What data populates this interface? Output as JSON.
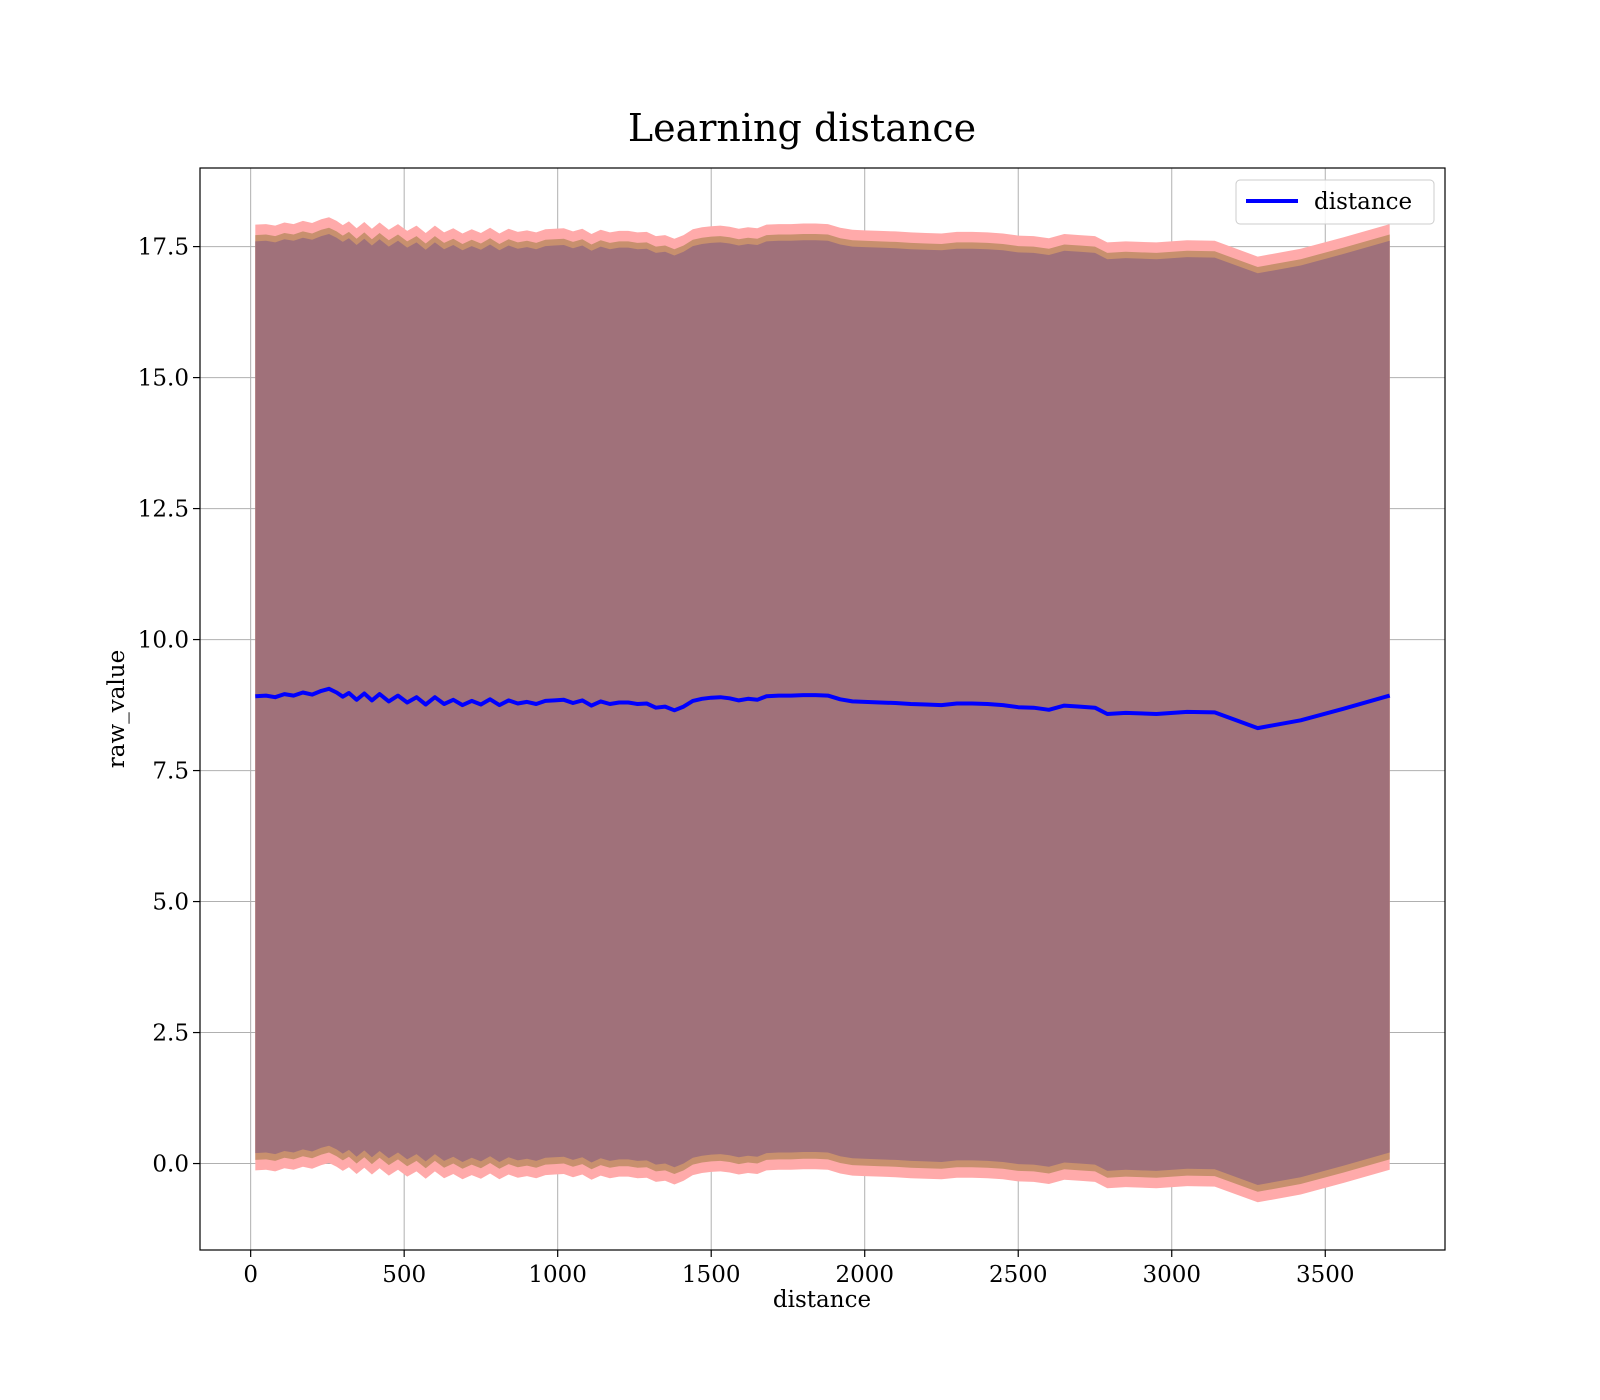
{
  "chart_data": {
    "type": "line",
    "title": "Learning distance",
    "xlabel": "distance",
    "ylabel": "raw_value",
    "xlim": [
      -165,
      3890
    ],
    "ylim": [
      -1.65,
      19.0
    ],
    "grid": true,
    "legend_position": "top-right",
    "x_ticks": [
      0,
      500,
      1000,
      1500,
      2000,
      2500,
      3000,
      3500
    ],
    "x_tick_labels": [
      "0",
      "500",
      "1000",
      "1500",
      "2000",
      "2500",
      "3000",
      "3500"
    ],
    "y_ticks": [
      0,
      2.5,
      5,
      7.5,
      10,
      12.5,
      15,
      17.5
    ],
    "y_tick_labels": [
      "0.0",
      "2.5",
      "5.0",
      "7.5",
      "10.0",
      "12.5",
      "15.0",
      "17.5"
    ],
    "colors": {
      "line": "#0000ff",
      "band_outer": "#ffaaaa",
      "band_middle": "#c8906e",
      "band_inner": "#a0717a"
    },
    "series": [
      {
        "name": "distance",
        "x": [
          15,
          50,
          80,
          110,
          140,
          170,
          200,
          230,
          255,
          280,
          300,
          320,
          345,
          370,
          395,
          420,
          450,
          480,
          510,
          540,
          570,
          600,
          630,
          660,
          690,
          720,
          750,
          780,
          810,
          840,
          870,
          900,
          930,
          960,
          990,
          1020,
          1050,
          1080,
          1110,
          1140,
          1170,
          1200,
          1230,
          1260,
          1290,
          1320,
          1350,
          1380,
          1410,
          1440,
          1470,
          1500,
          1530,
          1560,
          1590,
          1620,
          1650,
          1680,
          1720,
          1760,
          1800,
          1840,
          1880,
          1920,
          1960,
          2000,
          2050,
          2100,
          2150,
          2200,
          2250,
          2300,
          2350,
          2400,
          2450,
          2500,
          2550,
          2600,
          2650,
          2700,
          2750,
          2790,
          2850,
          2950,
          3050,
          3140,
          3280,
          3420,
          3560,
          3710
        ],
        "y": [
          8.92,
          8.93,
          8.9,
          8.96,
          8.93,
          8.99,
          8.95,
          9.02,
          9.06,
          8.99,
          8.91,
          8.98,
          8.85,
          8.97,
          8.84,
          8.96,
          8.82,
          8.93,
          8.8,
          8.9,
          8.76,
          8.9,
          8.77,
          8.85,
          8.75,
          8.83,
          8.76,
          8.86,
          8.75,
          8.84,
          8.78,
          8.81,
          8.77,
          8.83,
          8.84,
          8.85,
          8.79,
          8.84,
          8.74,
          8.82,
          8.77,
          8.8,
          8.8,
          8.77,
          8.78,
          8.7,
          8.72,
          8.65,
          8.72,
          8.83,
          8.87,
          8.89,
          8.9,
          8.88,
          8.84,
          8.87,
          8.85,
          8.92,
          8.93,
          8.93,
          8.94,
          8.94,
          8.93,
          8.86,
          8.82,
          8.81,
          8.8,
          8.79,
          8.77,
          8.76,
          8.75,
          8.78,
          8.78,
          8.77,
          8.75,
          8.71,
          8.7,
          8.66,
          8.74,
          8.72,
          8.7,
          8.58,
          8.6,
          8.58,
          8.62,
          8.61,
          8.31,
          8.46,
          8.68,
          8.93
        ]
      }
    ],
    "bands": [
      {
        "name": "outer",
        "offset_low": 9.05,
        "offset_high": 9.0
      },
      {
        "name": "middle",
        "offset_low": 8.85,
        "offset_high": 8.8
      },
      {
        "name": "inner",
        "offset_low": 8.72,
        "offset_high": 8.68
      }
    ]
  }
}
